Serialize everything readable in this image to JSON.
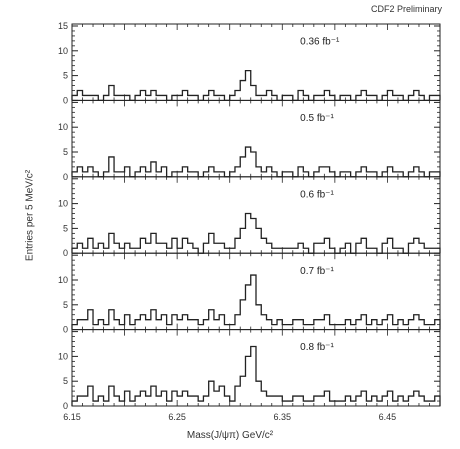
{
  "header": {
    "prelim_label": "CDF2 Preliminary"
  },
  "chart_data": {
    "type": "histogram",
    "title": "",
    "xlabel": "Mass(J/ψπ) GeV/c²",
    "ylabel": "Entries per 5 MeV/c²",
    "x_range": [
      6.15,
      6.5
    ],
    "bin_width": 0.005,
    "x_ticks": [
      "6.15",
      "6.25",
      "6.35",
      "6.45"
    ],
    "y_range": [
      0,
      15
    ],
    "y_ticks": [
      "0",
      "5",
      "10",
      "15"
    ],
    "line_color": "#222222",
    "panels": [
      {
        "label": "0.36 fb⁻¹",
        "values": [
          1,
          2,
          1,
          1,
          1,
          0,
          1,
          3,
          1,
          1,
          1,
          0,
          1,
          2,
          1,
          2,
          1,
          1,
          0,
          1,
          1,
          2,
          1,
          1,
          0,
          1,
          2,
          1,
          1,
          0,
          1,
          2,
          4,
          6,
          3,
          1,
          1,
          2,
          1,
          0,
          1,
          1,
          0,
          2,
          1,
          0,
          1,
          1,
          2,
          1,
          0,
          1,
          1,
          0,
          1,
          2,
          1,
          1,
          0,
          1,
          2,
          1,
          1,
          0,
          1,
          2,
          1,
          0,
          1,
          1
        ]
      },
      {
        "label": "0.5 fb⁻¹",
        "values": [
          1,
          2,
          1,
          2,
          1,
          0,
          1,
          4,
          1,
          1,
          2,
          0,
          1,
          2,
          1,
          3,
          1,
          2,
          0,
          1,
          1,
          2,
          1,
          1,
          0,
          1,
          2,
          1,
          1,
          0,
          1,
          2,
          4,
          6,
          5,
          2,
          1,
          2,
          1,
          0,
          1,
          1,
          0,
          2,
          1,
          0,
          1,
          2,
          2,
          1,
          0,
          1,
          1,
          0,
          1,
          2,
          1,
          1,
          0,
          1,
          2,
          1,
          1,
          0,
          1,
          2,
          1,
          0,
          1,
          1
        ]
      },
      {
        "label": "0.6 fb⁻¹",
        "values": [
          1,
          2,
          1,
          3,
          1,
          2,
          1,
          4,
          2,
          1,
          2,
          1,
          1,
          3,
          2,
          4,
          2,
          2,
          1,
          3,
          1,
          3,
          2,
          1,
          0,
          2,
          4,
          2,
          2,
          1,
          1,
          3,
          5,
          8,
          7,
          5,
          3,
          2,
          1,
          1,
          1,
          1,
          1,
          2,
          1,
          0,
          2,
          2,
          3,
          1,
          0,
          1,
          2,
          0,
          2,
          3,
          1,
          1,
          0,
          2,
          3,
          1,
          1,
          0,
          2,
          3,
          2,
          1,
          1,
          1
        ]
      },
      {
        "label": "0.7 fb⁻¹",
        "values": [
          1,
          2,
          2,
          4,
          1,
          2,
          1,
          4,
          2,
          1,
          3,
          1,
          2,
          3,
          2,
          4,
          2,
          3,
          1,
          3,
          2,
          3,
          2,
          2,
          1,
          2,
          4,
          2,
          3,
          1,
          1,
          3,
          6,
          9,
          11,
          5,
          3,
          2,
          1,
          2,
          1,
          1,
          2,
          2,
          1,
          1,
          2,
          2,
          3,
          1,
          1,
          1,
          2,
          1,
          2,
          3,
          1,
          2,
          1,
          2,
          3,
          1,
          2,
          1,
          2,
          3,
          2,
          1,
          1,
          2
        ]
      },
      {
        "label": "0.8 fb⁻¹",
        "values": [
          1,
          2,
          2,
          4,
          1,
          2,
          1,
          4,
          2,
          1,
          3,
          1,
          2,
          3,
          2,
          4,
          2,
          3,
          1,
          3,
          2,
          3,
          2,
          2,
          1,
          2,
          5,
          3,
          4,
          2,
          1,
          4,
          6,
          10,
          12,
          5,
          3,
          2,
          2,
          2,
          1,
          1,
          2,
          2,
          1,
          1,
          2,
          2,
          3,
          1,
          1,
          1,
          2,
          1,
          2,
          3,
          1,
          2,
          1,
          2,
          3,
          1,
          2,
          1,
          2,
          3,
          2,
          1,
          1,
          2
        ]
      }
    ]
  }
}
